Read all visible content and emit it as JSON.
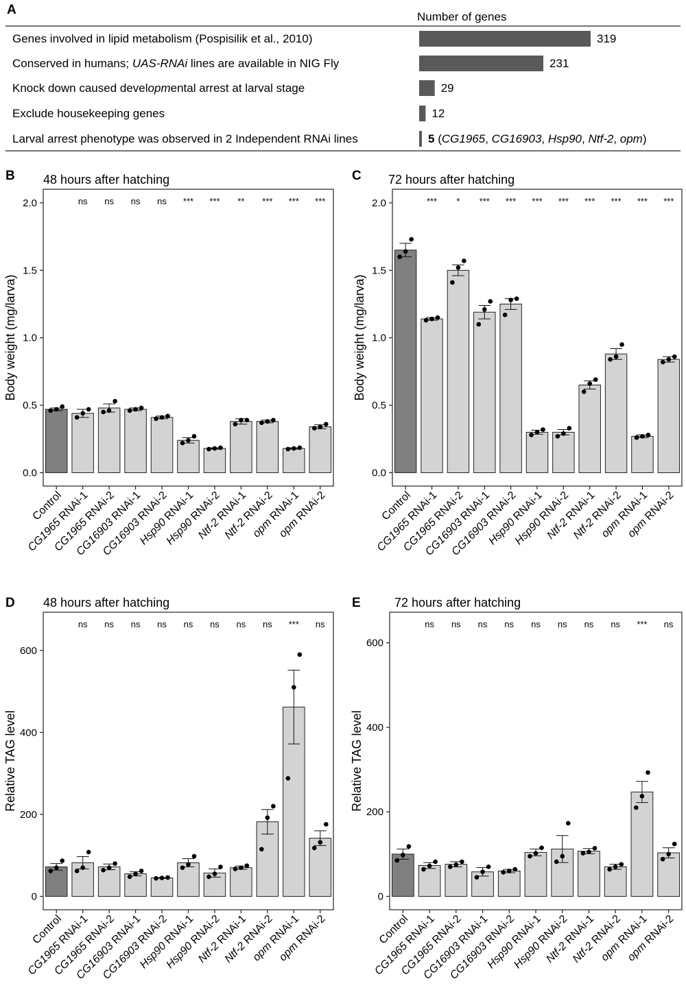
{
  "panels": {
    "A": "A",
    "B": "B",
    "C": "C",
    "D": "D",
    "E": "E"
  },
  "chart_data": [
    {
      "id": "A",
      "type": "bar",
      "orientation": "horizontal",
      "header": "Number of  genes",
      "categories": [
        "Genes involved in lipid metabolism (Pospisilik et al., 2010)",
        "Conserved in humans; UAS-RNAi lines are available in NIG Fly",
        "Knock down caused developmental arrest at larval stage",
        "Exclude housekeeping genes",
        "Larval arrest phenotype was observed in 2 Independent RNAi lines"
      ],
      "values": [
        319,
        231,
        29,
        12,
        5
      ],
      "value_labels": [
        "319",
        "231",
        "29",
        "12",
        "5"
      ],
      "last_value_genes": [
        "CG1965",
        "CG16903",
        "Hsp90",
        "Ntf-2",
        "opm"
      ],
      "bar_color": "#595959"
    },
    {
      "id": "B",
      "type": "bar",
      "title": "48 hours after hatching",
      "ylabel": "Body weight (mg/larva)",
      "ylim": [
        0,
        2.0
      ],
      "yticks": [
        0,
        0.5,
        1.0,
        1.5,
        2.0
      ],
      "ytick_labels": [
        "0.0",
        "0.5",
        "1.0",
        "1.5",
        "2.0"
      ],
      "categories": [
        "Control",
        "CG1965 RNAi-1",
        "CG1965 RNAi-2",
        "CG16903 RNAi-1",
        "CG16903 RNAi-2",
        "Hsp90 RNAi-1",
        "Hsp90 RNAi-2",
        "Ntf-2 RNAi-1",
        "Ntf-2 RNAi-2",
        "opm RNAi-1",
        "opm RNAi-2"
      ],
      "values": [
        0.47,
        0.44,
        0.48,
        0.47,
        0.41,
        0.24,
        0.18,
        0.38,
        0.38,
        0.18,
        0.34
      ],
      "errors": [
        0.01,
        0.03,
        0.03,
        0.01,
        0.01,
        0.02,
        0.005,
        0.02,
        0.01,
        0.005,
        0.015
      ],
      "points": [
        [
          0.46,
          0.47,
          0.49
        ],
        [
          0.41,
          0.44,
          0.47
        ],
        [
          0.45,
          0.46,
          0.53
        ],
        [
          0.46,
          0.47,
          0.48
        ],
        [
          0.4,
          0.41,
          0.42
        ],
        [
          0.22,
          0.24,
          0.27
        ],
        [
          0.175,
          0.18,
          0.185
        ],
        [
          0.36,
          0.39,
          0.39
        ],
        [
          0.37,
          0.38,
          0.39
        ],
        [
          0.175,
          0.18,
          0.185
        ],
        [
          0.33,
          0.34,
          0.36
        ]
      ],
      "significance": [
        "",
        "ns",
        "ns",
        "ns",
        "ns",
        "***",
        "***",
        "**",
        "***",
        "***",
        "***"
      ],
      "control_color": "#808080",
      "bar_color": "#d3d3d3"
    },
    {
      "id": "C",
      "type": "bar",
      "title": "72 hours after hatching",
      "ylabel": "Body weight (mg/larva)",
      "ylim": [
        0,
        2.0
      ],
      "yticks": [
        0,
        0.5,
        1.0,
        1.5,
        2.0
      ],
      "ytick_labels": [
        "0.0",
        "0.5",
        "1.0",
        "1.5",
        "2.0"
      ],
      "categories": [
        "Control",
        "CG1965 RNAi-1",
        "CG1965 RNAi-2",
        "CG16903 RNAi-1",
        "CG16903 RNAi-2",
        "Hsp90 RNAi-1",
        "Hsp90 RNAi-2",
        "Ntf-2 RNAi-1",
        "Ntf-2 RNAi-2",
        "opm RNAi-1",
        "opm RNAi-2"
      ],
      "values": [
        1.65,
        1.14,
        1.5,
        1.19,
        1.25,
        0.3,
        0.3,
        0.65,
        0.88,
        0.27,
        0.84
      ],
      "errors": [
        0.05,
        0.01,
        0.04,
        0.05,
        0.04,
        0.015,
        0.02,
        0.03,
        0.04,
        0.01,
        0.02
      ],
      "points": [
        [
          1.6,
          1.64,
          1.73
        ],
        [
          1.13,
          1.14,
          1.15
        ],
        [
          1.41,
          1.52,
          1.57
        ],
        [
          1.1,
          1.21,
          1.27
        ],
        [
          1.17,
          1.28,
          1.29
        ],
        [
          0.28,
          0.3,
          0.32
        ],
        [
          0.27,
          0.29,
          0.33
        ],
        [
          0.6,
          0.66,
          0.69
        ],
        [
          0.84,
          0.86,
          0.95
        ],
        [
          0.26,
          0.27,
          0.28
        ],
        [
          0.82,
          0.84,
          0.86
        ]
      ],
      "significance": [
        "",
        "***",
        "*",
        "***",
        "***",
        "***",
        "***",
        "***",
        "***",
        "***",
        "***"
      ],
      "control_color": "#808080",
      "bar_color": "#d3d3d3"
    },
    {
      "id": "D",
      "type": "bar",
      "title": "48 hours after hatching",
      "ylabel": "Relative TAG level",
      "ylim": [
        0,
        660
      ],
      "yticks": [
        0,
        200,
        400,
        600
      ],
      "ytick_labels": [
        "0",
        "200",
        "400",
        "600"
      ],
      "categories": [
        "Control",
        "CG1965 RNAi-1",
        "CG1965 RNAi-2",
        "CG16903 RNAi-1",
        "CG16903 RNAi-2",
        "Hsp90 RNAi-1",
        "Hsp90 RNAi-2",
        "Ntf-2 RNAi-1",
        "Ntf-2 RNAi-2",
        "opm RNAi-1",
        "opm RNAi-2"
      ],
      "values": [
        72,
        82,
        72,
        55,
        45,
        82,
        57,
        70,
        182,
        462,
        142
      ],
      "errors": [
        8,
        15,
        7,
        5,
        1,
        10,
        10,
        4,
        30,
        90,
        18
      ],
      "points": [
        [
          62,
          70,
          87
        ],
        [
          62,
          70,
          108
        ],
        [
          64,
          70,
          80
        ],
        [
          48,
          55,
          62
        ],
        [
          44,
          45,
          46
        ],
        [
          70,
          78,
          98
        ],
        [
          48,
          55,
          72
        ],
        [
          67,
          70,
          75
        ],
        [
          115,
          192,
          220
        ],
        [
          288,
          510,
          590
        ],
        [
          118,
          132,
          176
        ]
      ],
      "significance": [
        "",
        "ns",
        "ns",
        "ns",
        "ns",
        "ns",
        "ns",
        "ns",
        "ns",
        "***",
        "ns"
      ],
      "control_color": "#808080",
      "bar_color": "#d3d3d3"
    },
    {
      "id": "E",
      "type": "bar",
      "title": "72 hours after hatching",
      "ylabel": "Relative TAG level",
      "ylim": [
        0,
        640
      ],
      "yticks": [
        0,
        200,
        400,
        600
      ],
      "ytick_labels": [
        "0",
        "200",
        "400",
        "600"
      ],
      "categories": [
        "Control",
        "CG1965 RNAi-1",
        "CG1965 RNAi-2",
        "CG16903 RNAi-1",
        "CG16903 RNAi-2",
        "Hsp90 RNAi-1",
        "Hsp90 RNAi-2",
        "Ntf-2 RNAi-1",
        "Ntf-2 RNAi-2",
        "opm RNAi-1",
        "opm RNAi-2"
      ],
      "values": [
        100,
        73,
        76,
        58,
        60,
        104,
        112,
        107,
        70,
        247,
        103
      ],
      "errors": [
        12,
        7,
        6,
        10,
        4,
        8,
        32,
        6,
        6,
        25,
        12
      ],
      "points": [
        [
          85,
          98,
          118
        ],
        [
          64,
          72,
          82
        ],
        [
          70,
          75,
          82
        ],
        [
          45,
          58,
          70
        ],
        [
          57,
          60,
          64
        ],
        [
          95,
          102,
          115
        ],
        [
          82,
          95,
          173
        ],
        [
          102,
          105,
          114
        ],
        [
          64,
          70,
          76
        ],
        [
          210,
          237,
          293
        ],
        [
          88,
          100,
          124
        ]
      ],
      "significance": [
        "",
        "ns",
        "ns",
        "ns",
        "ns",
        "ns",
        "ns",
        "ns",
        "ns",
        "***",
        "ns"
      ],
      "control_color": "#808080",
      "bar_color": "#d3d3d3"
    }
  ]
}
